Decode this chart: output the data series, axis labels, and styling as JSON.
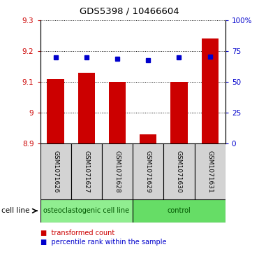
{
  "title": "GDS5398 / 10466604",
  "samples": [
    "GSM1071626",
    "GSM1071627",
    "GSM1071628",
    "GSM1071629",
    "GSM1071630",
    "GSM1071631"
  ],
  "transformed_counts": [
    9.11,
    9.13,
    9.1,
    8.93,
    9.1,
    9.24
  ],
  "percentile_ranks": [
    70.0,
    70.0,
    68.5,
    67.5,
    70.0,
    70.5
  ],
  "ylim_left": [
    8.9,
    9.3
  ],
  "ylim_right": [
    0,
    100
  ],
  "yticks_left": [
    8.9,
    9.0,
    9.1,
    9.2,
    9.3
  ],
  "yticks_right": [
    0,
    25,
    50,
    75,
    100
  ],
  "ytick_labels_left": [
    "8.9",
    "9",
    "9.1",
    "9.2",
    "9.3"
  ],
  "ytick_labels_right": [
    "0",
    "25",
    "50",
    "75",
    "100%"
  ],
  "bar_bottom": 8.9,
  "bar_color": "#cc0000",
  "dot_color": "#0000cc",
  "groups": [
    {
      "label": "osteoclastogenic cell line",
      "start": 0,
      "end": 3,
      "color": "#90ee90"
    },
    {
      "label": "control",
      "start": 3,
      "end": 6,
      "color": "#66dd66"
    }
  ],
  "cell_line_label": "cell line",
  "legend_items": [
    {
      "color": "#cc0000",
      "label": "transformed count"
    },
    {
      "color": "#0000cc",
      "label": "percentile rank within the sample"
    }
  ],
  "bar_width": 0.55
}
